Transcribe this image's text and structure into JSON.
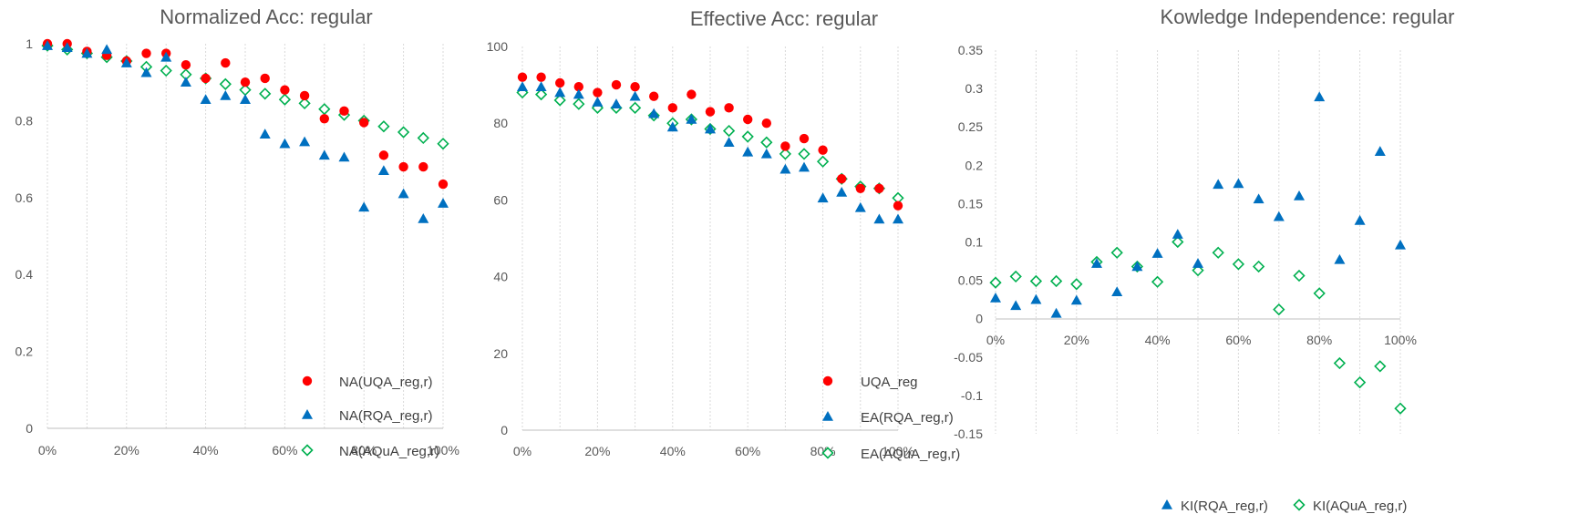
{
  "colors": {
    "red": "#ff0000",
    "blue": "#0070c0",
    "green": "#00b050",
    "text": "#595959"
  },
  "chart_data": [
    {
      "type": "scatter",
      "title": "Normalized Acc:  regular",
      "x": [
        0,
        5,
        10,
        15,
        20,
        25,
        30,
        35,
        40,
        45,
        50,
        55,
        60,
        65,
        70,
        75,
        80,
        85,
        90,
        95,
        100
      ],
      "x_tick_labels": [
        "0%",
        "20%",
        "40%",
        "60%",
        "80%",
        "100%"
      ],
      "xlim": [
        0,
        100
      ],
      "ylim": [
        0,
        1
      ],
      "y_tick_labels": [
        "0",
        "0.2",
        "0.4",
        "0.6",
        "0.8",
        "1"
      ],
      "legend_position": "bottom-right",
      "series": [
        {
          "name": "NA(UQA_reg,r)",
          "marker": "circle",
          "color": "#ff0000",
          "values": [
            1.0,
            1.0,
            0.98,
            0.97,
            0.955,
            0.975,
            0.975,
            0.945,
            0.91,
            0.95,
            0.9,
            0.91,
            0.88,
            0.865,
            0.805,
            0.825,
            0.795,
            0.71,
            0.68,
            0.68,
            0.635
          ]
        },
        {
          "name": "NA(RQA_reg,r)",
          "marker": "triangle",
          "color": "#0070c0",
          "values": [
            0.995,
            0.99,
            0.975,
            0.985,
            0.95,
            0.925,
            0.965,
            0.9,
            0.855,
            0.865,
            0.855,
            0.765,
            0.74,
            0.745,
            0.71,
            0.705,
            0.575,
            0.67,
            0.61,
            0.545,
            0.585
          ]
        },
        {
          "name": "NA(AQuA_reg,r)",
          "marker": "diamond-open",
          "color": "#00b050",
          "values": [
            0.995,
            0.985,
            0.975,
            0.965,
            0.955,
            0.94,
            0.93,
            0.92,
            0.91,
            0.895,
            0.88,
            0.87,
            0.855,
            0.845,
            0.83,
            0.815,
            0.8,
            0.785,
            0.77,
            0.755,
            0.74
          ]
        }
      ]
    },
    {
      "type": "scatter",
      "title": "Effective Acc:  regular",
      "x": [
        0,
        5,
        10,
        15,
        20,
        25,
        30,
        35,
        40,
        45,
        50,
        55,
        60,
        65,
        70,
        75,
        80,
        85,
        90,
        95,
        100
      ],
      "x_tick_labels": [
        "0%",
        "20%",
        "40%",
        "60%",
        "80%",
        "100%"
      ],
      "xlim": [
        0,
        100
      ],
      "ylim": [
        0,
        100
      ],
      "y_tick_labels": [
        "0",
        "20",
        "40",
        "60",
        "80",
        "100"
      ],
      "legend_position": "bottom-right",
      "series": [
        {
          "name": "UQA_reg",
          "marker": "circle",
          "color": "#ff0000",
          "values": [
            92,
            92,
            90.5,
            89.5,
            88,
            90,
            89.5,
            87,
            84,
            87.5,
            83,
            84,
            81,
            80,
            74,
            76,
            73,
            65.5,
            63,
            63,
            58.5
          ]
        },
        {
          "name": "EA(RQA_reg,r)",
          "marker": "triangle",
          "color": "#0070c0",
          "values": [
            89.5,
            89.5,
            88,
            87.5,
            85.5,
            85,
            87,
            82.5,
            79,
            81,
            78.5,
            75,
            72.5,
            72,
            68,
            68.5,
            60.5,
            62,
            58,
            55,
            55
          ]
        },
        {
          "name": "EA(AQuA_reg,r)",
          "marker": "diamond-open",
          "color": "#00b050",
          "values": [
            88,
            87.5,
            86,
            85,
            84,
            84,
            84,
            82,
            80,
            81,
            78.5,
            78,
            76.5,
            75,
            72,
            72,
            70,
            65.5,
            63.5,
            63,
            60.5
          ]
        }
      ]
    },
    {
      "type": "scatter",
      "title": "Kowledge Independence:  regular",
      "x": [
        0,
        5,
        10,
        15,
        20,
        25,
        30,
        35,
        40,
        45,
        50,
        55,
        60,
        65,
        70,
        75,
        80,
        85,
        90,
        95,
        100
      ],
      "x_tick_labels": [
        "0%",
        "20%",
        "40%",
        "60%",
        "80%",
        "100%"
      ],
      "xlim": [
        0,
        100
      ],
      "ylim": [
        -0.15,
        0.35
      ],
      "y_tick_labels": [
        "-0.15",
        "-0.1",
        "-0.05",
        "0",
        "0.05",
        "0.1",
        "0.15",
        "0.2",
        "0.25",
        "0.3",
        "0.35"
      ],
      "legend_position": "bottom",
      "series": [
        {
          "name": "KI(RQA_reg,r)",
          "marker": "triangle",
          "color": "#0070c0",
          "values": [
            0.027,
            0.017,
            0.025,
            0.007,
            0.024,
            0.072,
            0.035,
            0.068,
            0.085,
            0.11,
            0.072,
            0.175,
            0.176,
            0.156,
            0.133,
            0.16,
            0.289,
            0.077,
            0.128,
            0.218,
            0.096
          ]
        },
        {
          "name": "KI(AQuA_reg,r)",
          "marker": "diamond-open",
          "color": "#00b050",
          "values": [
            0.047,
            0.055,
            0.049,
            0.049,
            0.045,
            0.074,
            0.086,
            0.068,
            0.048,
            0.1,
            0.063,
            0.086,
            0.071,
            0.068,
            0.012,
            0.056,
            0.033,
            -0.058,
            -0.083,
            -0.062,
            -0.117
          ]
        }
      ]
    }
  ]
}
